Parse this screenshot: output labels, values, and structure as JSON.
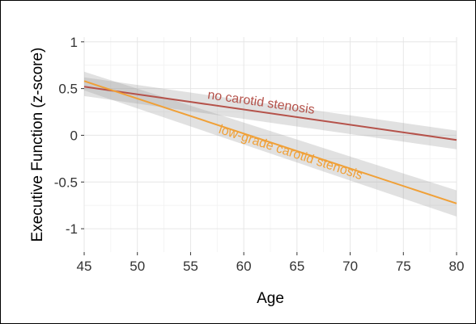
{
  "chart_data": {
    "type": "line",
    "xlabel": "Age",
    "ylabel": "Executive Function (z-score)",
    "xlim": [
      45,
      80
    ],
    "ylim": [
      -1.25,
      1.05
    ],
    "x_ticks": [
      45,
      50,
      55,
      60,
      65,
      70,
      75,
      80
    ],
    "x_tick_labels": [
      "45",
      "50",
      "55",
      "60",
      "65",
      "70",
      "75",
      "80"
    ],
    "y_ticks": [
      1,
      0.5,
      0,
      -0.5,
      -1
    ],
    "y_tick_labels": [
      "1",
      "0.5",
      "0",
      "-0.5",
      "-1"
    ],
    "grid": true,
    "legend": "none",
    "series": [
      {
        "name": "no carotid stenosis",
        "color": "#b5524a",
        "x": [
          45,
          80
        ],
        "y": [
          0.52,
          -0.05
        ],
        "ci_lower": [
          0.42,
          -0.15
        ],
        "ci_upper": [
          0.62,
          0.05
        ]
      },
      {
        "name": "low-grade carotid stenosis",
        "color": "#f0a037",
        "x": [
          45,
          80
        ],
        "y": [
          0.58,
          -0.73
        ],
        "ci_lower": [
          0.48,
          -0.87
        ],
        "ci_upper": [
          0.68,
          -0.59
        ]
      }
    ]
  }
}
